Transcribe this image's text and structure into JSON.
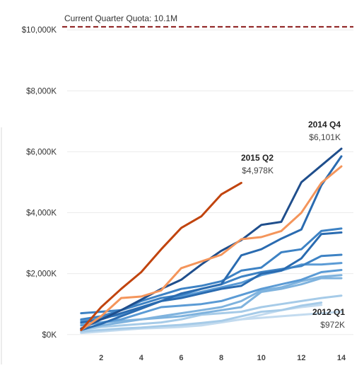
{
  "chart_data": {
    "type": "line",
    "title": "",
    "xlabel": "",
    "ylabel": "",
    "xlim": [
      0.3,
      14.6
    ],
    "ylim": [
      -400,
      10400
    ],
    "x_ticks": [
      "2",
      "4",
      "6",
      "8",
      "10",
      "12",
      "14"
    ],
    "y_ticks": [
      {
        "value": 0,
        "label": "$0K"
      },
      {
        "value": 2000,
        "label": "$2,000K"
      },
      {
        "value": 4000,
        "label": "$4,000K"
      },
      {
        "value": 6000,
        "label": "$6,000K"
      },
      {
        "value": 8000,
        "label": "$8,000K"
      },
      {
        "value": 10000,
        "label": "$10,000K"
      }
    ],
    "grid": true,
    "reference_line": {
      "value": 10100,
      "label": "Current Quarter Quota: 10.1M",
      "color": "#8b1a1a"
    },
    "colors": {
      "highlight_current": "#c1440e",
      "highlight_previous": "#f4955b",
      "quota": "#8b1a1a",
      "palette": [
        "#1f4e8c",
        "#2a6bb0",
        "#3d82c4",
        "#5b9bd5",
        "#7fb3de",
        "#a6cbe8",
        "#c3dbef"
      ]
    },
    "annotations": [
      {
        "title": "2014 Q4",
        "value": "$6,101K"
      },
      {
        "title": "2015 Q2",
        "value": "$4,978K"
      },
      {
        "title": "2012 Q1",
        "value": "$972K"
      }
    ],
    "series": [
      {
        "x": [
          1,
          2,
          3,
          4,
          5,
          6,
          7,
          8,
          9
        ],
        "values": [
          150,
          900,
          1500,
          2050,
          2800,
          3500,
          3880,
          4600,
          4978
        ],
        "color": "#c1440e",
        "width": 3
      },
      {
        "x": [
          1,
          2,
          3,
          4,
          5,
          6,
          7,
          8,
          9,
          10,
          11,
          12,
          13,
          14
        ],
        "values": [
          150,
          600,
          1200,
          1250,
          1450,
          2180,
          2400,
          2620,
          3130,
          3200,
          3400,
          4000,
          4980,
          5520
        ],
        "color": "#f4955b",
        "width": 3
      },
      {
        "x": [
          1,
          2,
          3,
          4,
          5,
          6,
          7,
          8,
          9,
          10,
          11,
          12,
          13,
          14
        ],
        "values": [
          200,
          500,
          800,
          1150,
          1500,
          1800,
          2300,
          2750,
          3100,
          3600,
          3700,
          5000,
          5550,
          6101
        ],
        "color": "#1f4e8c",
        "width": 3
      },
      {
        "x": [
          1,
          2,
          3,
          4,
          5,
          6,
          7,
          8,
          9,
          10,
          11,
          12,
          13,
          14
        ],
        "values": [
          150,
          350,
          600,
          850,
          1100,
          1350,
          1500,
          1650,
          2600,
          2800,
          3150,
          3450,
          4900,
          5850
        ],
        "color": "#2a6bb0",
        "width": 3
      },
      {
        "x": [
          1,
          2,
          3,
          4,
          5,
          6,
          7,
          8,
          9,
          10,
          11,
          12,
          13,
          14
        ],
        "values": [
          500,
          600,
          800,
          1100,
          1300,
          1500,
          1600,
          1750,
          2100,
          2200,
          2700,
          2800,
          3400,
          3480
        ],
        "color": "#3d82c4",
        "width": 3
      },
      {
        "x": [
          1,
          2,
          3,
          4,
          5,
          6,
          7,
          8,
          9,
          10,
          11,
          12,
          13,
          14
        ],
        "values": [
          400,
          500,
          700,
          900,
          1100,
          1200,
          1350,
          1500,
          1600,
          2000,
          2100,
          2500,
          3300,
          3350
        ],
        "color": "#2a6bb0",
        "width": 3
      },
      {
        "x": [
          1,
          2,
          3,
          4,
          5,
          6,
          7,
          8,
          9,
          10,
          11,
          12,
          13,
          14
        ],
        "values": [
          700,
          750,
          800,
          1000,
          1200,
          1300,
          1500,
          1650,
          1900,
          2050,
          2150,
          2250,
          2580,
          2620
        ],
        "color": "#3d82c4",
        "width": 3
      },
      {
        "x": [
          1,
          2,
          3,
          4,
          5,
          6,
          7,
          8,
          9,
          10,
          11,
          12,
          13,
          14
        ],
        "values": [
          450,
          550,
          650,
          900,
          1100,
          1250,
          1400,
          1550,
          1700,
          1950,
          2100,
          2300,
          2300,
          2350
        ],
        "color": "#5b9bd5",
        "width": 3
      },
      {
        "x": [
          1,
          2,
          3,
          4,
          5,
          6,
          7,
          8,
          9,
          10,
          11,
          12,
          13,
          14
        ],
        "values": [
          300,
          400,
          500,
          700,
          900,
          950,
          1000,
          1100,
          1300,
          1500,
          1650,
          1800,
          2050,
          2120
        ],
        "color": "#5b9bd5",
        "width": 3
      },
      {
        "x": [
          1,
          2,
          3,
          4,
          5,
          6,
          7,
          8,
          9,
          10,
          11,
          12,
          13,
          14
        ],
        "values": [
          200,
          300,
          400,
          500,
          600,
          700,
          800,
          900,
          1100,
          1450,
          1550,
          1750,
          1900,
          1950
        ],
        "color": "#7fb3de",
        "width": 3
      },
      {
        "x": [
          1,
          2,
          3,
          4,
          5,
          6,
          7,
          8,
          9,
          10,
          11,
          12,
          13,
          14
        ],
        "values": [
          350,
          400,
          450,
          500,
          550,
          600,
          700,
          800,
          900,
          1400,
          1500,
          1650,
          1850,
          1850
        ],
        "color": "#7fb3de",
        "width": 3
      },
      {
        "x": [
          1,
          2,
          3,
          4,
          5,
          6,
          7,
          8,
          9,
          10,
          11,
          12,
          13,
          14
        ],
        "values": [
          150,
          250,
          300,
          350,
          400,
          500,
          650,
          700,
          750,
          900,
          1000,
          1100,
          1200,
          1280
        ],
        "color": "#a6cbe8",
        "width": 3
      },
      {
        "x": [
          1,
          2,
          3,
          4,
          5,
          6,
          7,
          8,
          9,
          10,
          11,
          12,
          13
        ],
        "values": [
          100,
          150,
          200,
          230,
          280,
          320,
          380,
          450,
          600,
          750,
          800,
          950,
          1050
        ],
        "color": "#a6cbe8",
        "width": 3
      },
      {
        "x": [
          1,
          2,
          3,
          4,
          5,
          6,
          7,
          8,
          9,
          10,
          11,
          12,
          13
        ],
        "values": [
          50,
          100,
          150,
          200,
          220,
          250,
          300,
          400,
          500,
          650,
          800,
          900,
          972
        ],
        "color": "#c3dbef",
        "width": 3
      },
      {
        "x": [
          1,
          2,
          3,
          4,
          5,
          6,
          7,
          8,
          9,
          10,
          11,
          12,
          13,
          14
        ],
        "values": [
          60,
          120,
          180,
          220,
          260,
          300,
          350,
          420,
          500,
          550,
          600,
          650,
          700,
          750
        ],
        "color": "#c3dbef",
        "width": 3
      }
    ]
  }
}
